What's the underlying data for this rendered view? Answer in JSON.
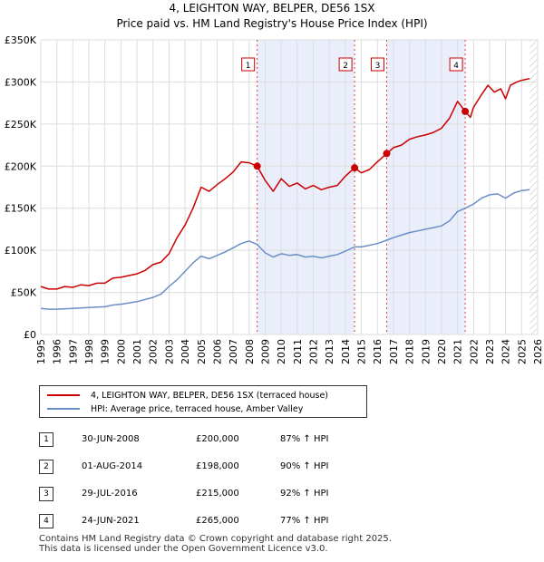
{
  "chart_data": {
    "type": "line",
    "title": "4, LEIGHTON WAY, BELPER, DE56 1SX",
    "subtitle": "Price paid vs. HM Land Registry's House Price Index (HPI)",
    "xlim": [
      1995,
      2026
    ],
    "ylim": [
      0,
      350000
    ],
    "x_ticks": [
      "1995",
      "1996",
      "1997",
      "1998",
      "1999",
      "2000",
      "2001",
      "2002",
      "2003",
      "2004",
      "2005",
      "2006",
      "2007",
      "2008",
      "2009",
      "2010",
      "2011",
      "2012",
      "2013",
      "2014",
      "2015",
      "2016",
      "2017",
      "2018",
      "2019",
      "2020",
      "2021",
      "2022",
      "2023",
      "2024",
      "2025",
      "2026"
    ],
    "y_ticks": [
      {
        "value": 0,
        "label": "£0"
      },
      {
        "value": 50000,
        "label": "£50K"
      },
      {
        "value": 100000,
        "label": "£100K"
      },
      {
        "value": 150000,
        "label": "£150K"
      },
      {
        "value": 200000,
        "label": "£200K"
      },
      {
        "value": 250000,
        "label": "£250K"
      },
      {
        "value": 300000,
        "label": "£300K"
      },
      {
        "value": 350000,
        "label": "£350K"
      }
    ],
    "series": [
      {
        "name": "4, LEIGHTON WAY, BELPER, DE56 1SX (terraced house)",
        "color": "#cc0000",
        "points": [
          [
            1995.0,
            57000
          ],
          [
            1995.5,
            54000
          ],
          [
            1996.0,
            54000
          ],
          [
            1996.5,
            57000
          ],
          [
            1997.0,
            56000
          ],
          [
            1997.5,
            59000
          ],
          [
            1998.0,
            58000
          ],
          [
            1998.5,
            61000
          ],
          [
            1999.0,
            61000
          ],
          [
            1999.5,
            67000
          ],
          [
            2000.0,
            68000
          ],
          [
            2000.5,
            70000
          ],
          [
            2001.0,
            72000
          ],
          [
            2001.5,
            76000
          ],
          [
            2002.0,
            83000
          ],
          [
            2002.5,
            86000
          ],
          [
            2003.0,
            96000
          ],
          [
            2003.5,
            115000
          ],
          [
            2004.0,
            130000
          ],
          [
            2004.5,
            150000
          ],
          [
            2005.0,
            175000
          ],
          [
            2005.5,
            170000
          ],
          [
            2006.0,
            178000
          ],
          [
            2006.5,
            185000
          ],
          [
            2007.0,
            193000
          ],
          [
            2007.5,
            205000
          ],
          [
            2008.0,
            204000
          ],
          [
            2008.5,
            200000
          ],
          [
            2009.0,
            183000
          ],
          [
            2009.5,
            170000
          ],
          [
            2010.0,
            185000
          ],
          [
            2010.5,
            176000
          ],
          [
            2011.0,
            180000
          ],
          [
            2011.5,
            173000
          ],
          [
            2012.0,
            177000
          ],
          [
            2012.5,
            172000
          ],
          [
            2013.0,
            175000
          ],
          [
            2013.5,
            177000
          ],
          [
            2014.0,
            188000
          ],
          [
            2014.58,
            198000
          ],
          [
            2015.0,
            192000
          ],
          [
            2015.5,
            196000
          ],
          [
            2016.0,
            205000
          ],
          [
            2016.58,
            215000
          ],
          [
            2017.0,
            222000
          ],
          [
            2017.5,
            225000
          ],
          [
            2018.0,
            232000
          ],
          [
            2018.5,
            235000
          ],
          [
            2019.0,
            237000
          ],
          [
            2019.5,
            240000
          ],
          [
            2020.0,
            245000
          ],
          [
            2020.5,
            257000
          ],
          [
            2021.0,
            277000
          ],
          [
            2021.48,
            265000
          ],
          [
            2021.8,
            258000
          ],
          [
            2022.0,
            270000
          ],
          [
            2022.5,
            285000
          ],
          [
            2022.9,
            296000
          ],
          [
            2023.3,
            288000
          ],
          [
            2023.7,
            292000
          ],
          [
            2024.0,
            280000
          ],
          [
            2024.3,
            296000
          ],
          [
            2024.7,
            300000
          ],
          [
            2025.0,
            302000
          ],
          [
            2025.5,
            304000
          ]
        ]
      },
      {
        "name": "HPI: Average price, terraced house, Amber Valley",
        "color": "#6a8fc8",
        "points": [
          [
            1995.0,
            31000
          ],
          [
            1995.5,
            30000
          ],
          [
            1996.0,
            30000
          ],
          [
            1997.0,
            31000
          ],
          [
            1998.0,
            32000
          ],
          [
            1999.0,
            33000
          ],
          [
            1999.5,
            35000
          ],
          [
            2000.0,
            36000
          ],
          [
            2001.0,
            39000
          ],
          [
            2002.0,
            44000
          ],
          [
            2002.5,
            48000
          ],
          [
            2003.0,
            57000
          ],
          [
            2003.5,
            65000
          ],
          [
            2004.0,
            75000
          ],
          [
            2004.5,
            85000
          ],
          [
            2005.0,
            93000
          ],
          [
            2005.5,
            90000
          ],
          [
            2006.0,
            94000
          ],
          [
            2006.5,
            98000
          ],
          [
            2007.0,
            103000
          ],
          [
            2007.5,
            108000
          ],
          [
            2008.0,
            111000
          ],
          [
            2008.5,
            107000
          ],
          [
            2009.0,
            97000
          ],
          [
            2009.5,
            92000
          ],
          [
            2010.0,
            96000
          ],
          [
            2010.5,
            94000
          ],
          [
            2011.0,
            95000
          ],
          [
            2011.5,
            92000
          ],
          [
            2012.0,
            93000
          ],
          [
            2012.5,
            91000
          ],
          [
            2013.0,
            93000
          ],
          [
            2013.5,
            95000
          ],
          [
            2014.0,
            99000
          ],
          [
            2014.58,
            104000
          ],
          [
            2015.0,
            104000
          ],
          [
            2015.5,
            106000
          ],
          [
            2016.0,
            108000
          ],
          [
            2016.58,
            112000
          ],
          [
            2017.0,
            115000
          ],
          [
            2017.5,
            118000
          ],
          [
            2018.0,
            121000
          ],
          [
            2018.5,
            123000
          ],
          [
            2019.0,
            125000
          ],
          [
            2019.5,
            127000
          ],
          [
            2020.0,
            129000
          ],
          [
            2020.5,
            135000
          ],
          [
            2021.0,
            146000
          ],
          [
            2021.48,
            150000
          ],
          [
            2022.0,
            155000
          ],
          [
            2022.5,
            162000
          ],
          [
            2023.0,
            166000
          ],
          [
            2023.5,
            167000
          ],
          [
            2024.0,
            162000
          ],
          [
            2024.5,
            168000
          ],
          [
            2025.0,
            171000
          ],
          [
            2025.5,
            172000
          ]
        ]
      }
    ],
    "sales": [
      {
        "num": "1",
        "year": 2008.5,
        "price": 200000
      },
      {
        "num": "2",
        "year": 2014.58,
        "price": 198000
      },
      {
        "num": "3",
        "year": 2016.58,
        "price": 215000
      },
      {
        "num": "4",
        "year": 2021.48,
        "price": 265000
      }
    ],
    "shaded_ranges": [
      [
        2008.5,
        2014.58
      ],
      [
        2016.58,
        2021.48
      ]
    ],
    "forecast_from": 2025.5
  },
  "legend": {
    "property_label": "4, LEIGHTON WAY, BELPER, DE56 1SX (terraced house)",
    "hpi_label": "HPI: Average price, terraced house, Amber Valley",
    "property_color": "#cc0000",
    "hpi_color": "#6a8fc8"
  },
  "table": [
    {
      "num": "1",
      "date": "30-JUN-2008",
      "price": "£200,000",
      "hpi": "87% ↑ HPI"
    },
    {
      "num": "2",
      "date": "01-AUG-2014",
      "price": "£198,000",
      "hpi": "90% ↑ HPI"
    },
    {
      "num": "3",
      "date": "29-JUL-2016",
      "price": "£215,000",
      "hpi": "92% ↑ HPI"
    },
    {
      "num": "4",
      "date": "24-JUN-2021",
      "price": "£265,000",
      "hpi": "77% ↑ HPI"
    }
  ],
  "footer": {
    "line1": "Contains HM Land Registry data © Crown copyright and database right 2025.",
    "line2": "This data is licensed under the Open Government Licence v3.0."
  }
}
